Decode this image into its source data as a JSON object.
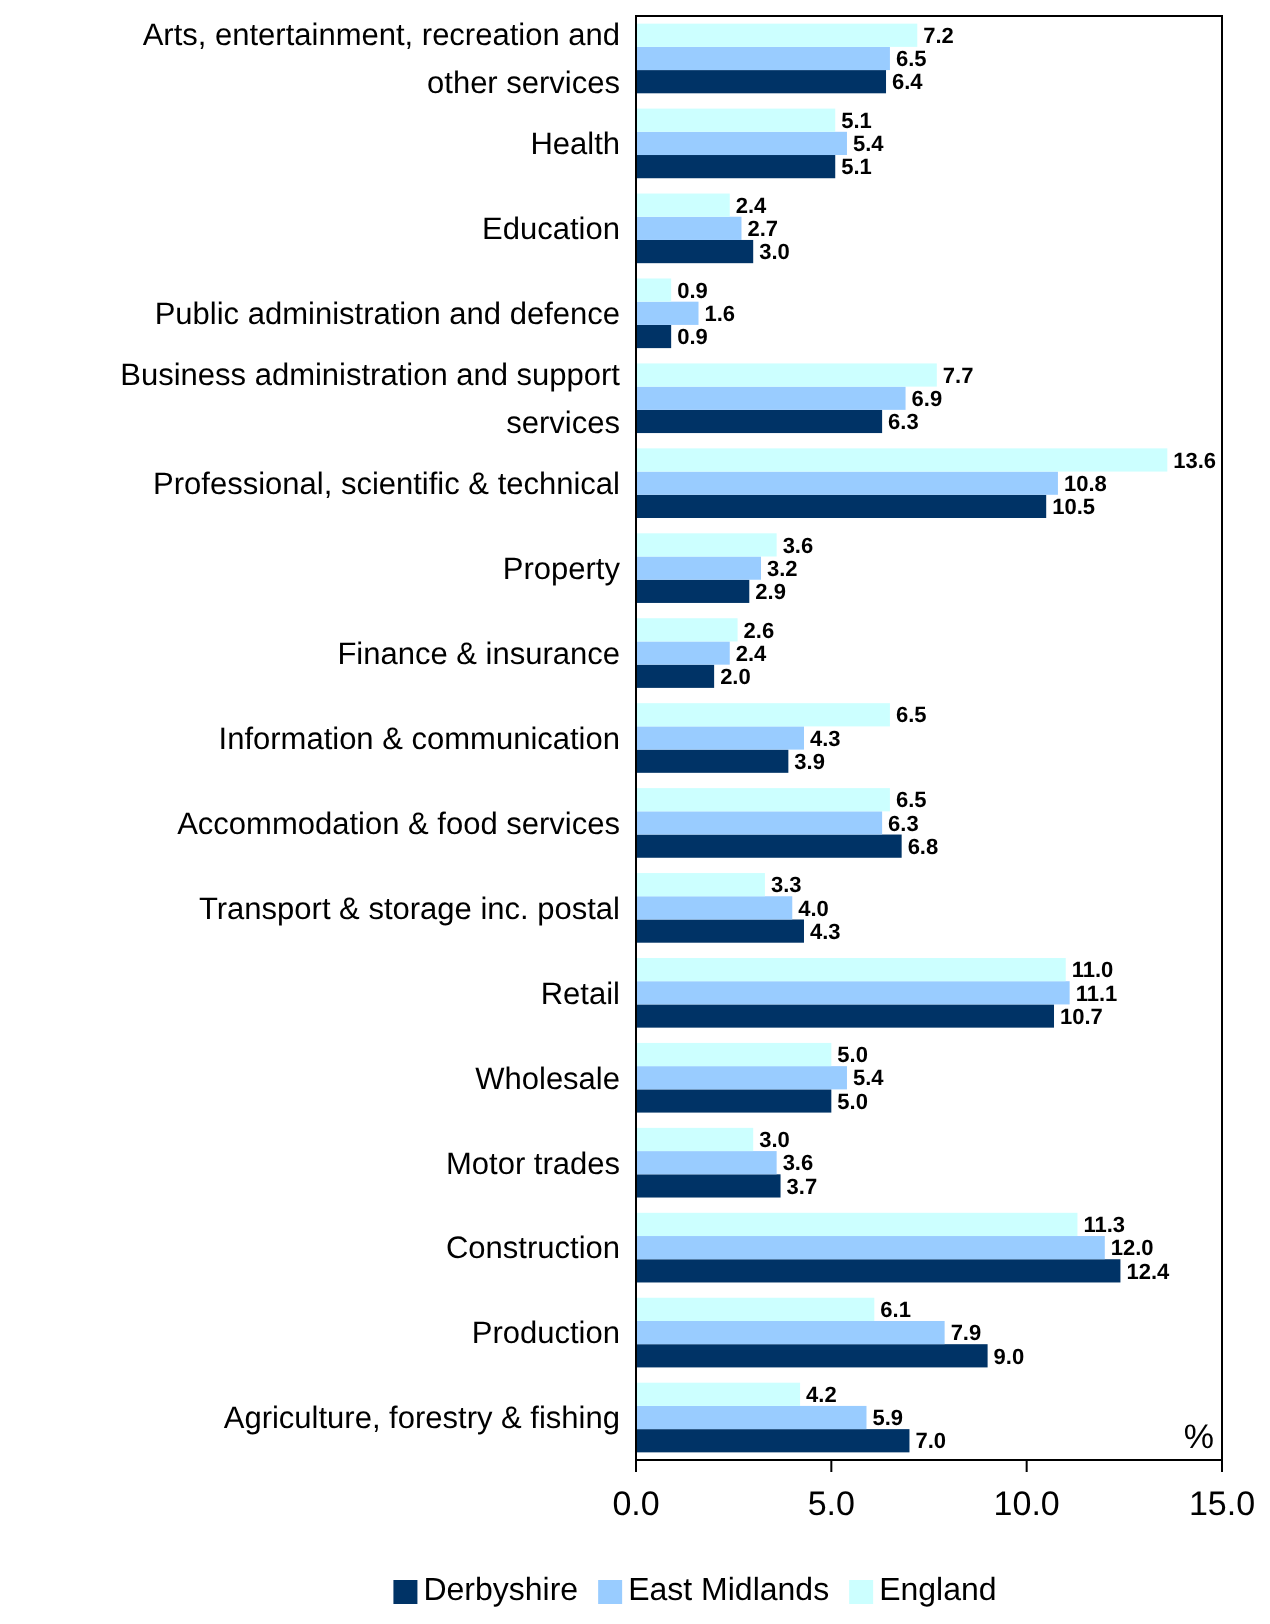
{
  "chart_data": {
    "type": "bar",
    "orientation": "horizontal",
    "xlabel": "%",
    "categories": [
      "Arts, entertainment, recreation and other services",
      "Health",
      "Education",
      "Public administration and defence",
      "Business administration and support services",
      "Professional, scientific & technical",
      "Property",
      "Finance & insurance",
      "Information & communication",
      "Accommodation & food services",
      "Transport & storage inc. postal",
      "Retail",
      "Wholesale",
      "Motor trades",
      "Construction",
      "Production",
      "Agriculture, forestry & fishing"
    ],
    "series": [
      {
        "name": "Derbyshire",
        "color": "#003366",
        "values": [
          6.4,
          5.1,
          3.0,
          0.9,
          6.3,
          10.5,
          2.9,
          2.0,
          3.9,
          6.8,
          4.3,
          10.7,
          5.0,
          3.7,
          12.4,
          9.0,
          7.0
        ],
        "value_labels": [
          "6.4",
          "5.1",
          "3.0",
          "0.9",
          "6.3",
          "10.5",
          "2.9",
          "2.0",
          "3.9",
          "6.8",
          "4.3",
          "10.7",
          "5.0",
          "3.7",
          "12.4",
          "9.0",
          "7.0"
        ]
      },
      {
        "name": "East Midlands",
        "color": "#99ccff",
        "values": [
          6.5,
          5.4,
          2.7,
          1.6,
          6.9,
          10.8,
          3.2,
          2.4,
          4.3,
          6.3,
          4.0,
          11.1,
          5.4,
          3.6,
          12.0,
          7.9,
          5.9
        ],
        "value_labels": [
          "6.5",
          "5.4",
          "2.7",
          "1.6",
          "6.9",
          "10.8",
          "3.2",
          "2.4",
          "4.3",
          "6.3",
          "4.0",
          "11.1",
          "5.4",
          "3.6",
          "12.0",
          "7.9",
          "5.9"
        ]
      },
      {
        "name": "England",
        "color": "#ccffff",
        "values": [
          7.2,
          5.1,
          2.4,
          0.9,
          7.7,
          13.6,
          3.6,
          2.6,
          6.5,
          6.5,
          3.3,
          11.0,
          5.0,
          3.0,
          11.3,
          6.1,
          4.2
        ],
        "value_labels": [
          "7.2",
          "5.1",
          "2.4",
          "0.9",
          "7.7",
          "13.6",
          "3.6",
          "2.6",
          "6.5",
          "6.5",
          "3.3",
          "11.0",
          "5.0",
          "3.0",
          "11.3",
          "6.1",
          "4.2"
        ]
      }
    ],
    "xlim": [
      0,
      15
    ],
    "xticks": [
      {
        "value": 0,
        "label": "0.0"
      },
      {
        "value": 5,
        "label": "5.0"
      },
      {
        "value": 10,
        "label": "10.0"
      },
      {
        "value": 15,
        "label": "15.0"
      }
    ],
    "legend": "bottom",
    "grid": false
  }
}
